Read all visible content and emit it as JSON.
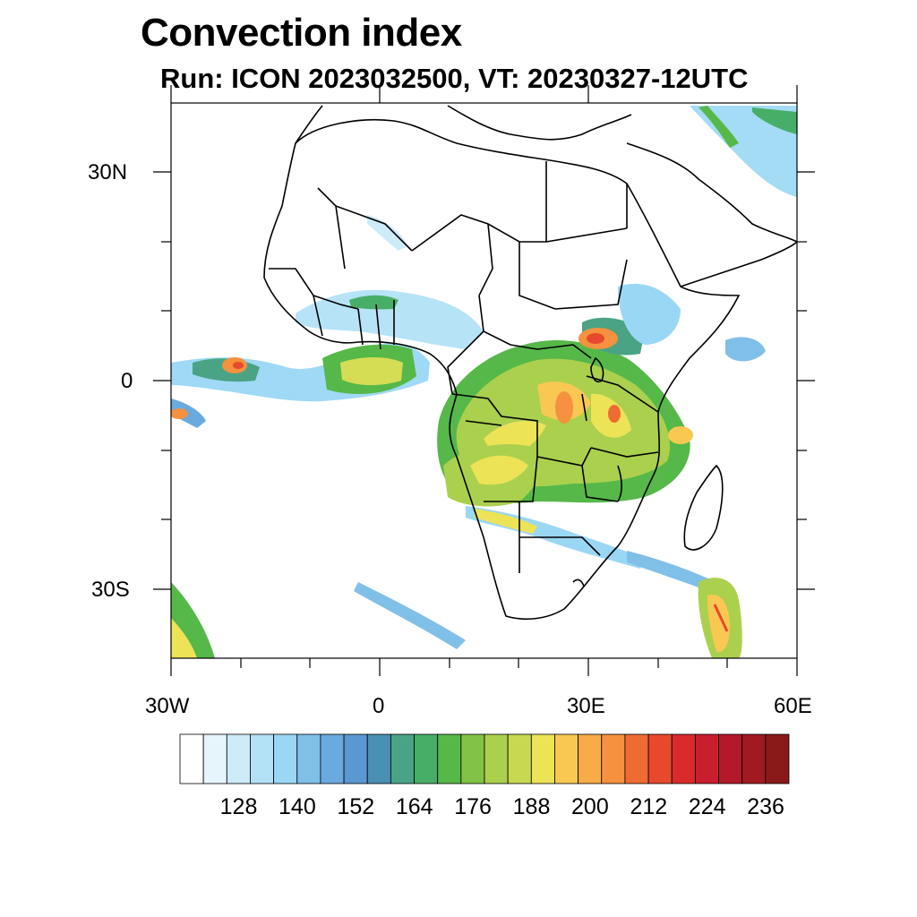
{
  "header": {
    "title": "Convection index",
    "subtitle": "Run: ICON 2023032500,  VT: 20230327-12UTC"
  },
  "map": {
    "region": "Africa",
    "lon_range": [
      -30,
      60
    ],
    "lat_range": [
      -40,
      40
    ],
    "lat_labels": [
      "30N",
      "0",
      "30S"
    ],
    "lon_labels": [
      "30W",
      "0",
      "30E",
      "60E"
    ]
  },
  "colorbar": {
    "colors": [
      "#ffffff",
      "#e6f4fc",
      "#cdebf8",
      "#b2e1f6",
      "#9ad7f4",
      "#80bfe8",
      "#6baadf",
      "#5b97d0",
      "#4a8fb4",
      "#4aa384",
      "#47ae68",
      "#55b848",
      "#82c246",
      "#aad04e",
      "#c8d851",
      "#ece357",
      "#f8c853",
      "#f7ac48",
      "#f5913f",
      "#ee6c33",
      "#e6492c",
      "#d92b2b",
      "#c81e2f",
      "#b4182b",
      "#a11a21",
      "#8a1a1a"
    ],
    "labels": [
      "128",
      "140",
      "152",
      "164",
      "176",
      "188",
      "200",
      "212",
      "224",
      "236"
    ]
  }
}
